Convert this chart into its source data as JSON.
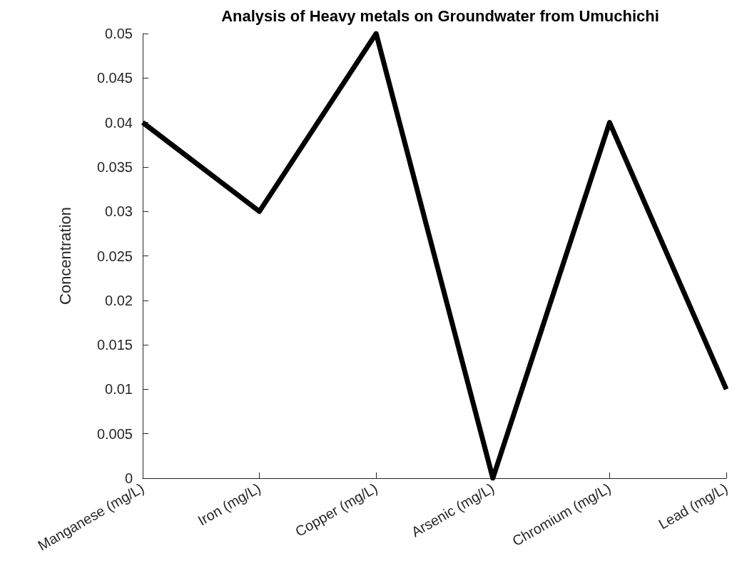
{
  "chart_data": {
    "type": "line",
    "title": "Analysis of Heavy metals on Groundwater from Umuchichi",
    "ylabel": "Concentration",
    "categories": [
      "Manganese (mg/L)",
      "Iron (mg/L)",
      "Copper (mg/L)",
      "Arsenic (mg/L)",
      "Chromium (mg/L)",
      "Lead (mg/L)"
    ],
    "series": [
      {
        "color": "#000000",
        "values": [
          0.04,
          0.03,
          0.05,
          0,
          0.04,
          0.01
        ]
      }
    ],
    "ylim": [
      0,
      0.05
    ],
    "yticks": [
      0,
      0.005,
      0.01,
      0.015,
      0.02,
      0.025,
      0.03,
      0.035,
      0.04,
      0.045,
      0.05
    ],
    "grid": false,
    "marker": "none",
    "line_style": "solid"
  }
}
